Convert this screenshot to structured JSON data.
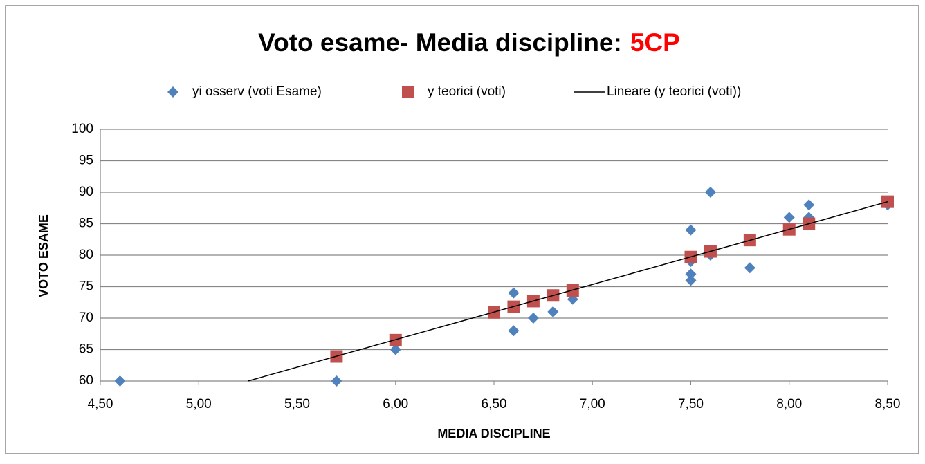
{
  "chart_data": {
    "type": "scatter",
    "title": "Voto esame- Media discipline:",
    "title_highlight": "5CP",
    "title_highlight_color": "#ff0000",
    "xlabel": "MEDIA DISCIPLINE",
    "ylabel": "VOTO ESAME",
    "xlim": [
      4.5,
      8.5
    ],
    "ylim": [
      60,
      100
    ],
    "xticks": [
      {
        "value": 4.5,
        "label": "4,50"
      },
      {
        "value": 5.0,
        "label": "5,00"
      },
      {
        "value": 5.5,
        "label": "5,50"
      },
      {
        "value": 6.0,
        "label": "6,00"
      },
      {
        "value": 6.5,
        "label": "6,50"
      },
      {
        "value": 7.0,
        "label": "7,00"
      },
      {
        "value": 7.5,
        "label": "7,50"
      },
      {
        "value": 8.0,
        "label": "8,00"
      },
      {
        "value": 8.5,
        "label": "8,50"
      }
    ],
    "yticks": [
      60,
      65,
      70,
      75,
      80,
      85,
      90,
      95,
      100
    ],
    "grid": true,
    "legend": "top",
    "series": [
      {
        "name": "yi osserv (voti Esame)",
        "color": "#4f81bd",
        "marker": "diamond",
        "x": [
          4.6,
          5.7,
          6.0,
          6.5,
          6.6,
          6.6,
          6.7,
          6.8,
          6.9,
          7.5,
          7.5,
          7.5,
          7.5,
          7.6,
          7.6,
          7.8,
          8.0,
          8.1,
          8.1,
          8.5
        ],
        "values": [
          60,
          60,
          65,
          71,
          74,
          68,
          70,
          71,
          73,
          84,
          79,
          77,
          76,
          90,
          80,
          78,
          86,
          88,
          86,
          88
        ]
      },
      {
        "name": "y teorici (voti)",
        "color": "#c0504d",
        "marker": "square",
        "x": [
          5.7,
          6.0,
          6.5,
          6.6,
          6.7,
          6.8,
          6.9,
          7.5,
          7.6,
          7.8,
          8.0,
          8.1,
          8.5
        ],
        "values": [
          63.9,
          66.5,
          70.9,
          71.8,
          72.7,
          73.6,
          74.4,
          79.7,
          80.6,
          82.4,
          84.1,
          85.0,
          88.5
        ]
      },
      {
        "name": "Lineare (y teorici (voti))",
        "color": "#000000",
        "marker": "line",
        "x": [
          5.25,
          8.5
        ],
        "values": [
          60,
          88.5
        ]
      }
    ]
  }
}
